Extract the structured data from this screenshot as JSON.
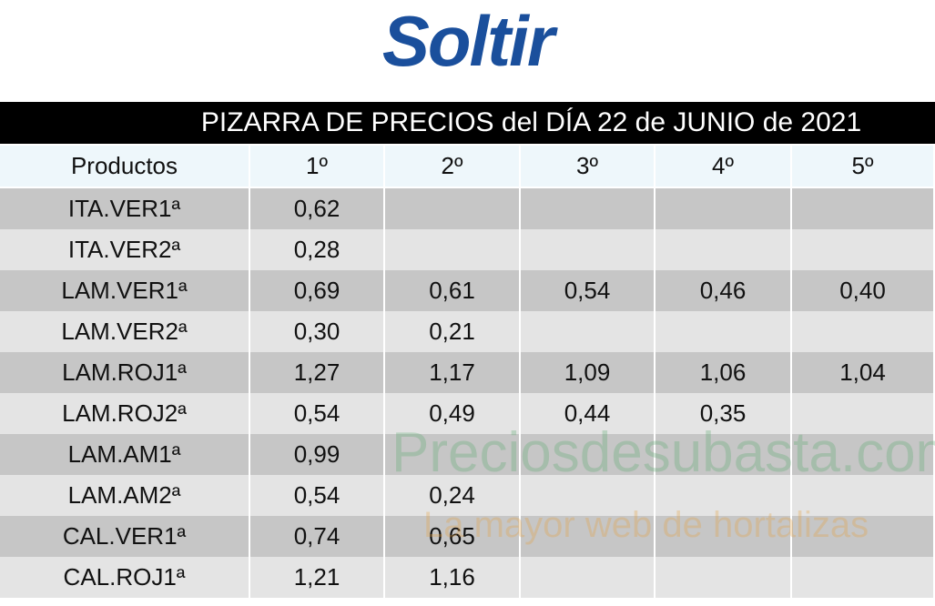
{
  "logo": {
    "text": "Soltir"
  },
  "title": "PIZARRA DE PRECIOS del DÍA 22 de JUNIO de 2021",
  "table": {
    "columns": [
      "Productos",
      "1º",
      "2º",
      "3º",
      "4º",
      "5º"
    ],
    "rows": [
      {
        "product": "ITA.VER1ª",
        "prices": [
          "0,62"
        ]
      },
      {
        "product": "ITA.VER2ª",
        "prices": [
          "0,28"
        ]
      },
      {
        "product": "LAM.VER1ª",
        "prices": [
          "0,69",
          "0,61",
          "0,54",
          "0,46",
          "0,40"
        ]
      },
      {
        "product": "LAM.VER2ª",
        "prices": [
          "0,30",
          "0,21"
        ]
      },
      {
        "product": "LAM.ROJ1ª",
        "prices": [
          "1,27",
          "1,17",
          "1,09",
          "1,06",
          "1,04"
        ]
      },
      {
        "product": "LAM.ROJ2ª",
        "prices": [
          "0,54",
          "0,49",
          "0,44",
          "0,35"
        ]
      },
      {
        "product": "LAM.AM1ª",
        "prices": [
          "0,99"
        ]
      },
      {
        "product": "LAM.AM2ª",
        "prices": [
          "0,54",
          "0,24"
        ]
      },
      {
        "product": "CAL.VER1ª",
        "prices": [
          "0,74",
          "0,65"
        ]
      },
      {
        "product": "CAL.ROJ1ª",
        "prices": [
          "1,21",
          "1,16"
        ]
      }
    ]
  },
  "watermark": {
    "site": "Preciosdesubasta.com",
    "slogan": "La mayor web de hortalizas"
  }
}
